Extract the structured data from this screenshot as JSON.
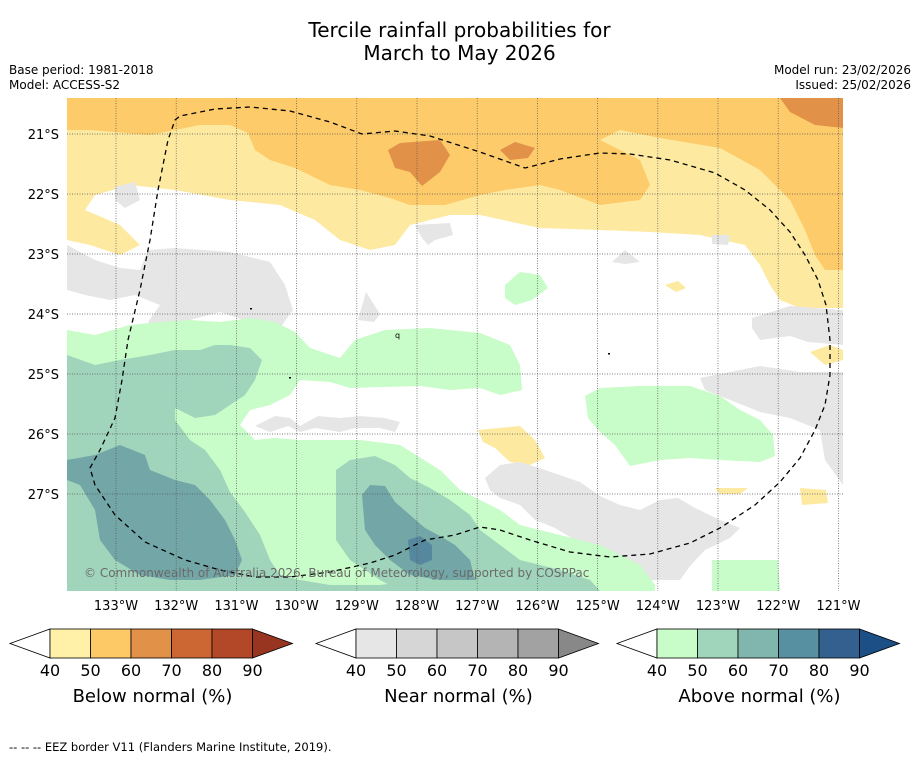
{
  "title_line1": "Tercile rainfall probabilities for",
  "title_line2": "March to May 2026",
  "meta": {
    "base_period": "Base period: 1981-2018",
    "model": "Model: ACCESS-S2",
    "model_run": "Model run: 23/02/2026",
    "issued": "Issued: 25/02/2026"
  },
  "map": {
    "lat_labels": [
      "21°S",
      "22°S",
      "23°S",
      "24°S",
      "25°S",
      "26°S",
      "27°S"
    ],
    "lon_labels": [
      "133°W",
      "132°W",
      "131°W",
      "130°W",
      "129°W",
      "128°W",
      "127°W",
      "126°W",
      "125°W",
      "124°W",
      "123°W",
      "122°W",
      "121°W"
    ],
    "copyright": "© Commonwealth of Australia 2026, Bureau of Meteorology, supported by COSPPac",
    "stray_mark": "q"
  },
  "colorbars": [
    {
      "label": "Below normal (%)",
      "ticks": [
        "40",
        "50",
        "60",
        "70",
        "80",
        "90"
      ],
      "colors": [
        "#ffffff",
        "#fff1a8",
        "#fdc966",
        "#e19148",
        "#cc6633",
        "#b34828",
        "#973520"
      ]
    },
    {
      "label": "Near normal (%)",
      "ticks": [
        "40",
        "50",
        "60",
        "70",
        "80",
        "90"
      ],
      "colors": [
        "#ffffff",
        "#e6e6e6",
        "#d6d6d6",
        "#c6c6c6",
        "#b4b4b4",
        "#a2a2a2",
        "#888888"
      ]
    },
    {
      "label": "Above normal (%)",
      "ticks": [
        "40",
        "50",
        "60",
        "70",
        "80",
        "90"
      ],
      "colors": [
        "#ffffff",
        "#c8fcc8",
        "#a0d5bc",
        "#80b6ae",
        "#5790a0",
        "#33608f",
        "#1c4f86"
      ]
    }
  ],
  "colors": {
    "below_50": "#fdeaa0",
    "below_60": "#fdcb6a",
    "below_70": "#e19148",
    "near_50": "#e6e6e6",
    "above_50": "#c8fcc8",
    "above_60": "#a0d5bc",
    "above_70": "#73a6a6",
    "above_80": "#55889e"
  },
  "footer": "--  --  -- EEZ border V11 (Flanders Marine Institute, 2019)."
}
